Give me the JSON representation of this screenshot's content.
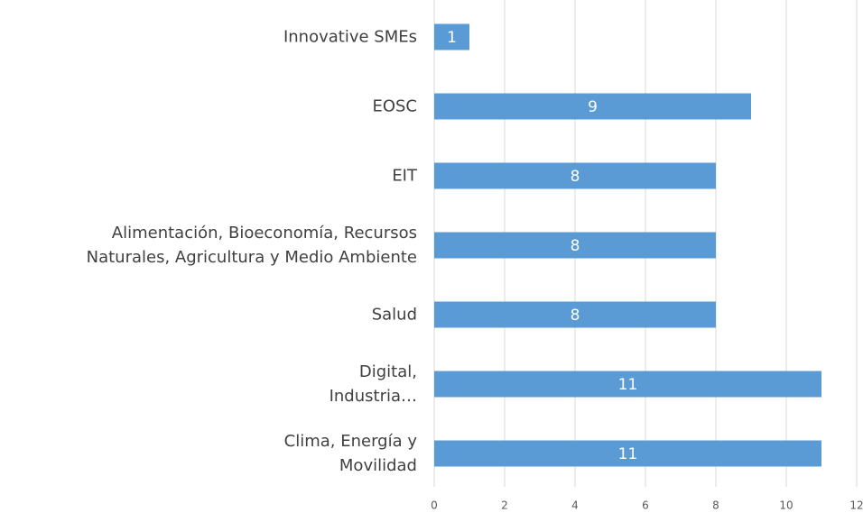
{
  "chart_data": {
    "type": "bar",
    "orientation": "horizontal",
    "categories": [
      "Innovative SMEs",
      "EOSC",
      "EIT",
      "Alimentación, Bioeconomía, Recursos\nNaturales, Agricultura y Medio Ambiente",
      "Salud",
      "Digital,\nIndustria…",
      "Clima, Energía y\nMovilidad"
    ],
    "values": [
      1,
      9,
      8,
      8,
      8,
      11,
      11
    ],
    "color": "#5b9bd5",
    "xlim": [
      0,
      12
    ],
    "xticks": [
      0,
      2,
      4,
      6,
      8,
      10,
      12
    ],
    "grid": true
  }
}
